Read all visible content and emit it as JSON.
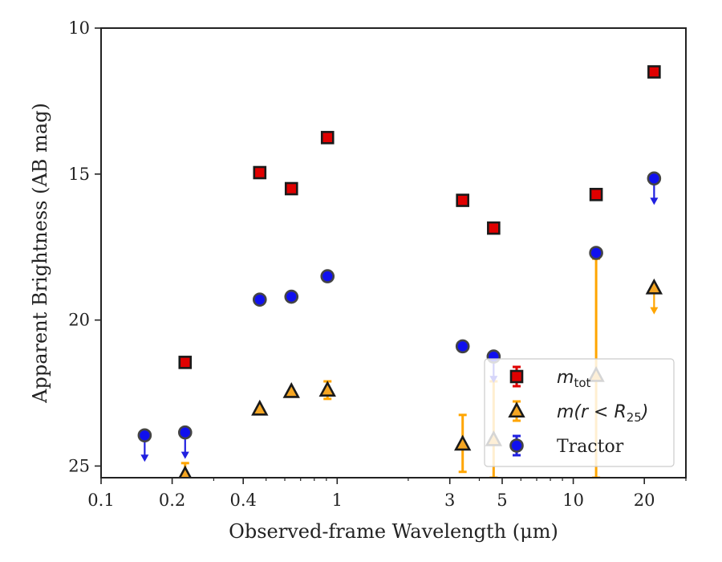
{
  "chart_data": {
    "type": "scatter",
    "xlabel": "Observed-frame Wavelength (μm)",
    "ylabel": "Apparent Brightness (AB mag)",
    "xscale": "log",
    "xlim": [
      0.1,
      30
    ],
    "ylim": [
      25.4,
      10
    ],
    "y_inverted": true,
    "xticks": [
      {
        "value": 0.1,
        "label": "0.1"
      },
      {
        "value": 0.2,
        "label": "0.2"
      },
      {
        "value": 0.4,
        "label": "0.4"
      },
      {
        "value": 1,
        "label": "1"
      },
      {
        "value": 3,
        "label": "3"
      },
      {
        "value": 5,
        "label": "5"
      },
      {
        "value": 10,
        "label": "10"
      },
      {
        "value": 20,
        "label": "20"
      }
    ],
    "yticks": [
      {
        "value": 10,
        "label": "10"
      },
      {
        "value": 15,
        "label": "15"
      },
      {
        "value": 20,
        "label": "20"
      },
      {
        "value": 25,
        "label": "25"
      }
    ],
    "grid": false,
    "legend_position": "lower-right",
    "legend": [
      {
        "id": "mtot",
        "text": "m",
        "sub": "tot",
        "marker": "square"
      },
      {
        "id": "mr25",
        "text": "m(r < R",
        "sub": "25",
        "text_after": ")",
        "marker": "triangle"
      },
      {
        "id": "tractor",
        "text": "Tractor",
        "marker": "circle"
      }
    ],
    "series": [
      {
        "id": "mtot",
        "marker": "square",
        "color": "#e00000",
        "edge_color": "#1a1a1a",
        "error_color": "#e00000",
        "points": [
          {
            "x": 0.227,
            "y": 21.45
          },
          {
            "x": 0.47,
            "y": 14.95
          },
          {
            "x": 0.64,
            "y": 15.5
          },
          {
            "x": 0.91,
            "y": 13.75
          },
          {
            "x": 3.4,
            "y": 15.9
          },
          {
            "x": 4.6,
            "y": 16.85
          },
          {
            "x": 12.5,
            "y": 15.7
          },
          {
            "x": 22.0,
            "y": 11.5
          }
        ]
      },
      {
        "id": "mr25",
        "marker": "triangle",
        "color": "#f5a623",
        "edge_color": "#1a1a1a",
        "error_color": "#ffa500",
        "points": [
          {
            "x": 0.227,
            "y": 25.3,
            "err_lo": 0.4,
            "err_hi": 0.4
          },
          {
            "x": 0.47,
            "y": 23.05
          },
          {
            "x": 0.64,
            "y": 22.45
          },
          {
            "x": 0.91,
            "y": 22.4,
            "err_lo": 0.3,
            "err_hi": 0.3
          },
          {
            "x": 3.4,
            "y": 24.25,
            "err_lo": 1.0,
            "err_hi": 0.95
          },
          {
            "x": 4.6,
            "y": 24.1,
            "err_lo": 2.0,
            "err_hi": 1.3
          },
          {
            "x": 12.5,
            "y": 21.9,
            "err_lo": 4.0,
            "err_hi": 3.5
          },
          {
            "x": 22.0,
            "y": 18.9,
            "upper_limit": true
          }
        ]
      },
      {
        "id": "tractor",
        "marker": "circle",
        "color": "#1010ee",
        "edge_color": "#444444",
        "error_color": "#2020e0",
        "points": [
          {
            "x": 0.153,
            "y": 23.95,
            "upper_limit": true
          },
          {
            "x": 0.227,
            "y": 23.85,
            "upper_limit": true
          },
          {
            "x": 0.47,
            "y": 19.3
          },
          {
            "x": 0.64,
            "y": 19.2
          },
          {
            "x": 0.91,
            "y": 18.5
          },
          {
            "x": 3.4,
            "y": 20.9
          },
          {
            "x": 4.6,
            "y": 21.25,
            "upper_limit": true
          },
          {
            "x": 12.5,
            "y": 17.7
          },
          {
            "x": 22.0,
            "y": 15.15,
            "upper_limit": true
          }
        ]
      }
    ]
  }
}
